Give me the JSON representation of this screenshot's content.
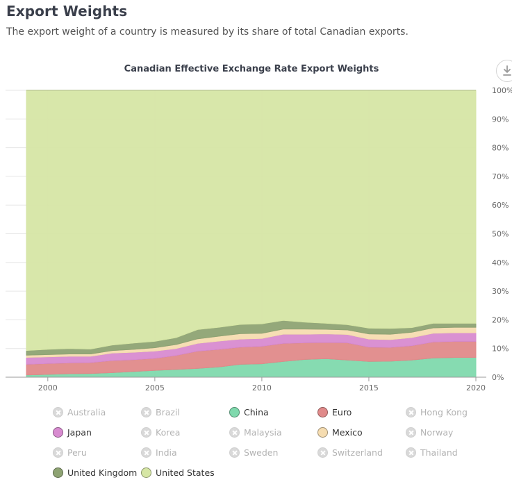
{
  "header": {
    "title": "Export Weights",
    "subtitle": "The export weight of a country is measured by its share of total Canadian exports."
  },
  "colors": {
    "China": "#7fd9ad",
    "Euro": "#e08a8a",
    "Japan": "#d88bd0",
    "Mexico": "#f5dcb0",
    "United Kingdom": "#8ea373",
    "United States": "#d6e6a5",
    "disabled": "#d9d9d9"
  },
  "chart_data": {
    "type": "area",
    "stacked": true,
    "title": "Canadian Effective Exchange Rate Export Weights",
    "xlabel": "",
    "ylabel": "",
    "xlim": [
      1999,
      2020
    ],
    "ylim": [
      0,
      100
    ],
    "x_ticks": [
      2000,
      2005,
      2010,
      2015,
      2020
    ],
    "y_ticks": [
      0,
      10,
      20,
      30,
      40,
      50,
      60,
      70,
      80,
      90,
      100
    ],
    "y_tick_suffix": "%",
    "y_axis_position": "right",
    "grid": true,
    "x": [
      1999,
      2000,
      2001,
      2002,
      2003,
      2004,
      2005,
      2006,
      2007,
      2008,
      2009,
      2010,
      2011,
      2012,
      2013,
      2014,
      2015,
      2016,
      2017,
      2018,
      2019,
      2020
    ],
    "series": [
      {
        "name": "China",
        "values": [
          0.8,
          1.0,
          1.2,
          1.3,
          1.6,
          2.0,
          2.4,
          2.7,
          3.1,
          3.6,
          4.5,
          4.7,
          5.5,
          6.2,
          6.5,
          6.0,
          5.5,
          5.6,
          6.0,
          6.7,
          6.9,
          6.9
        ]
      },
      {
        "name": "Euro",
        "values": [
          3.7,
          3.8,
          3.8,
          3.8,
          4.2,
          4.1,
          4.2,
          4.9,
          6.0,
          6.1,
          6.0,
          6.1,
          6.3,
          5.8,
          5.6,
          6.0,
          5.0,
          4.8,
          5.0,
          5.6,
          5.6,
          5.6
        ]
      },
      {
        "name": "Japan",
        "values": [
          2.4,
          2.3,
          2.3,
          2.2,
          2.6,
          2.6,
          2.5,
          2.4,
          2.7,
          2.9,
          2.8,
          2.7,
          3.2,
          3.0,
          3.0,
          2.9,
          2.8,
          2.7,
          2.8,
          3.0,
          3.0,
          3.0
        ]
      },
      {
        "name": "Mexico",
        "values": [
          0.8,
          0.8,
          0.8,
          0.8,
          0.9,
          1.0,
          1.2,
          1.4,
          1.6,
          1.7,
          1.9,
          1.8,
          1.8,
          1.8,
          1.6,
          1.6,
          1.8,
          1.9,
          1.9,
          1.9,
          1.9,
          1.9
        ]
      },
      {
        "name": "United Kingdom",
        "values": [
          1.6,
          1.8,
          1.9,
          1.7,
          1.9,
          2.2,
          2.2,
          2.4,
          3.2,
          3.1,
          3.2,
          3.3,
          3.0,
          2.4,
          2.1,
          1.8,
          2.0,
          2.0,
          1.6,
          1.6,
          1.4,
          1.4
        ]
      },
      {
        "name": "United States",
        "values": [
          90.7,
          90.3,
          90.0,
          90.2,
          88.8,
          88.1,
          87.5,
          86.2,
          83.4,
          82.6,
          81.6,
          81.4,
          80.2,
          80.8,
          81.2,
          81.7,
          82.9,
          83.0,
          82.7,
          81.2,
          81.2,
          81.2
        ]
      }
    ]
  },
  "legend": {
    "items": [
      {
        "label": "Australia",
        "color": "#d9d9d9",
        "enabled": false
      },
      {
        "label": "Brazil",
        "color": "#d9d9d9",
        "enabled": false
      },
      {
        "label": "China",
        "color": "#7fd9ad",
        "enabled": true
      },
      {
        "label": "Euro",
        "color": "#e08a8a",
        "enabled": true
      },
      {
        "label": "Hong Kong",
        "color": "#d9d9d9",
        "enabled": false
      },
      {
        "label": "Japan",
        "color": "#d88bd0",
        "enabled": true
      },
      {
        "label": "Korea",
        "color": "#d9d9d9",
        "enabled": false
      },
      {
        "label": "Malaysia",
        "color": "#d9d9d9",
        "enabled": false
      },
      {
        "label": "Mexico",
        "color": "#f5dcb0",
        "enabled": true
      },
      {
        "label": "Norway",
        "color": "#d9d9d9",
        "enabled": false
      },
      {
        "label": "Peru",
        "color": "#d9d9d9",
        "enabled": false
      },
      {
        "label": "India",
        "color": "#d9d9d9",
        "enabled": false
      },
      {
        "label": "Sweden",
        "color": "#d9d9d9",
        "enabled": false
      },
      {
        "label": "Switzerland",
        "color": "#d9d9d9",
        "enabled": false
      },
      {
        "label": "Thailand",
        "color": "#d9d9d9",
        "enabled": false
      },
      {
        "label": "United Kingdom",
        "color": "#8ea373",
        "enabled": true
      },
      {
        "label": "United States",
        "color": "#d6e6a5",
        "enabled": true
      }
    ]
  },
  "toolbar": {
    "download_icon": "download-icon"
  }
}
